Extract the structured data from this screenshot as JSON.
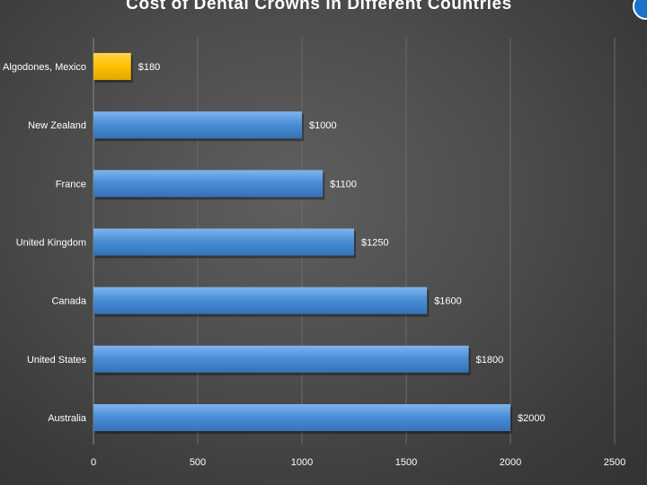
{
  "chart_data": {
    "type": "bar",
    "orientation": "horizontal",
    "title": "Cost of Dental Crowns in Different Countries",
    "categories": [
      "Los Algodones, Mexico",
      "New Zealand",
      "France",
      "United Kingdom",
      "Canada",
      "United States",
      "Australia"
    ],
    "values": [
      180,
      1000,
      1100,
      1250,
      1600,
      1800,
      2000
    ],
    "data_labels": [
      "$180",
      "$1000",
      "$1100",
      "$1250",
      "$1600",
      "$1800",
      "$2000"
    ],
    "xlim": [
      0,
      2500
    ],
    "x_ticks": [
      "0",
      "500",
      "1000",
      "1500",
      "2000",
      "2500"
    ],
    "xlabel": "",
    "ylabel": "",
    "grid": "vertical",
    "legend": "none",
    "colors": {
      "bar_default": "#4a8fd8",
      "bar_highlight": "#ffc000",
      "highlight_index": 0,
      "text": "#ffffff",
      "grid": "#6a6a6a"
    }
  }
}
